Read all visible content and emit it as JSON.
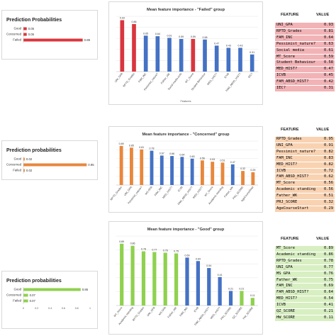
{
  "colors": {
    "failed": "#d9363e",
    "concerned": "#e8873c",
    "good": "#8fd14f",
    "bar_blue": "#4472c4",
    "row_red": "#f2b3b6",
    "row_orange": "#f9d2b1",
    "row_green": "#d8efc2"
  },
  "groups": [
    {
      "id": "failed",
      "prob_title": "Prediction Probabilities",
      "probs": [
        {
          "label": "Good",
          "value": 0.05,
          "value_text": "0.05"
        },
        {
          "label": "Concerned",
          "value": 0.05,
          "value_text": "0.05"
        },
        {
          "label": "Failed",
          "value": 0.89,
          "value_text": "0.89"
        }
      ],
      "prob_axis": [],
      "table_header": {
        "feature": "FEATURE",
        "value": "VALUE"
      },
      "table_rows": [
        {
          "feature": "UNI_GPA",
          "value": "0.93"
        },
        {
          "feature": "RPTD_Grades",
          "value": "0.81"
        },
        {
          "feature": "FAM_INC",
          "value": "0.64"
        },
        {
          "feature": "Pessimist_nature?",
          "value": "0.63"
        },
        {
          "feature": "Social media",
          "value": "0.61"
        },
        {
          "feature": "MT_Score",
          "value": "0.59"
        },
        {
          "feature": "Student Behaviour",
          "value": "0.58"
        },
        {
          "feature": "MED_HIST?",
          "value": "0.47"
        },
        {
          "feature": "ICVB",
          "value": "0.45"
        },
        {
          "feature": "FAM_ABSD_HIST?",
          "value": "0.42"
        },
        {
          "feature": "IEC?",
          "value": "0.31"
        }
      ]
    },
    {
      "id": "concerned",
      "prob_title": "Prediction probabilities",
      "probs": [
        {
          "label": "Good",
          "value": 0.02,
          "value_text": "0.02"
        },
        {
          "label": "Concerned",
          "value": 0.95,
          "value_text": "0.95"
        },
        {
          "label": "Failed",
          "value": 0.02,
          "value_text": "0.02"
        }
      ],
      "prob_axis": [],
      "table_header": {
        "feature": "FEATURE",
        "value": "VALUE"
      },
      "table_rows": [
        {
          "feature": "RPTD_Grades",
          "value": "0.95"
        },
        {
          "feature": "UNI_GPA",
          "value": "0.91"
        },
        {
          "feature": "Pessimist_nature?",
          "value": "0.82"
        },
        {
          "feature": "FAM_INC",
          "value": "0.83"
        },
        {
          "feature": "MED_HIST?",
          "value": "0.82"
        },
        {
          "feature": "ICVB",
          "value": "0.72"
        },
        {
          "feature": "FAM_ABSD_HIST?",
          "value": "0.62"
        },
        {
          "feature": "MT_Score",
          "value": "0.56"
        },
        {
          "feature": "Academic standing",
          "value": "0.56"
        },
        {
          "feature": "Father_WK",
          "value": "0.51"
        },
        {
          "feature": "PRJ_SCORE",
          "value": "0.32"
        },
        {
          "feature": "AgeCourseStart",
          "value": "0.29"
        }
      ]
    },
    {
      "id": "good",
      "prob_title": "Prediction probabilities",
      "probs": [
        {
          "label": "Good",
          "value": 0.86,
          "value_text": "0.86"
        },
        {
          "label": "Concerned",
          "value": 0.07,
          "value_text": "0.07"
        },
        {
          "label": "Failed",
          "value": 0.07,
          "value_text": "0.07"
        }
      ],
      "prob_axis": [
        "0",
        "0.2",
        "0.4",
        "0.6",
        "0.8",
        "1"
      ],
      "table_header": {
        "feature": "FEATURE",
        "value": "VALUE"
      },
      "table_rows": [
        {
          "feature": "MT_Score",
          "value": "0.89"
        },
        {
          "feature": "Academic standing",
          "value": "0.86"
        },
        {
          "feature": "RPTD_Grades",
          "value": "0.78"
        },
        {
          "feature": "UNI_GPA",
          "value": "0.77"
        },
        {
          "feature": "MS GPA",
          "value": "0.76"
        },
        {
          "feature": "Father_WK",
          "value": "0.75"
        },
        {
          "feature": "FAM_INC",
          "value": "0.69"
        },
        {
          "feature": "FAM_ABSD_HIST?",
          "value": "0.64"
        },
        {
          "feature": "MED_HIST?",
          "value": "0.54"
        },
        {
          "feature": "ICVB",
          "value": "0.41"
        },
        {
          "feature": "QZ_SCORE",
          "value": "0.21"
        },
        {
          "feature": "HW_SCORE",
          "value": "0.11"
        }
      ]
    }
  ],
  "chart_data": [
    {
      "type": "bar",
      "title": "Mean feature importance - \"Failed\" group",
      "xlabel": "Features",
      "ylim": [
        0,
        1
      ],
      "categories": [
        "UNI_GPA",
        "RPTD_Grades",
        "FAM_INC",
        "Pessimist_nature?",
        "Father_WK",
        "Social media exits",
        "MT_Score",
        "Student Behaviour",
        "MED_HIST?",
        "ICVB",
        "FAM_ABSD_HIST?",
        "IEC?"
      ],
      "values": [
        0.93,
        0.86,
        0.65,
        0.64,
        0.61,
        0.59,
        0.59,
        0.58,
        0.47,
        0.43,
        0.43,
        0.31
      ],
      "labels": [
        "0.93",
        "0.86",
        "0.65",
        "0.64",
        "0.61",
        "0.59",
        "0.59",
        "0.58",
        "0.47",
        "0.43",
        "0.43",
        "0.31"
      ],
      "colors": [
        "failed",
        "failed",
        "bar_blue",
        "bar_blue",
        "bar_blue",
        "bar_blue",
        "failed",
        "bar_blue",
        "bar_blue",
        "bar_blue",
        "bar_blue",
        "bar_blue"
      ]
    },
    {
      "type": "bar",
      "title": "Mean feature importance - \"Concerned\" group",
      "xlabel": "",
      "ylim": [
        0,
        1
      ],
      "categories": [
        "RPTD_Grades",
        "UNI_GPA",
        "Pessimist_nature?",
        "MS GPA",
        "FAM_INC",
        "MED_HIST?",
        "ICVB",
        "FAM_ABSD_HIST?",
        "MED_HIST?",
        "MT_Score",
        "Academic standing",
        "Father_WK",
        "PRJ_SCORE",
        "AgeCourseStart"
      ],
      "values": [
        0.89,
        0.85,
        0.81,
        0.78,
        0.67,
        0.66,
        0.64,
        0.6,
        0.56,
        0.53,
        0.51,
        0.47,
        0.32,
        0.29
      ],
      "labels": [
        "0.89",
        "0.85",
        "0.81",
        "0.78",
        "0.67",
        "0.66",
        "0.64",
        "0.60",
        "0.56",
        "0.53",
        "0.51",
        "0.47",
        "0.32",
        "0.29"
      ],
      "colors": [
        "concerned",
        "concerned",
        "concerned",
        "bar_blue",
        "bar_blue",
        "bar_blue",
        "bar_blue",
        "bar_blue",
        "concerned",
        "concerned",
        "concerned",
        "bar_blue",
        "concerned",
        "concerned"
      ]
    },
    {
      "type": "bar",
      "title": "Mean feature importance - \"Good\" group",
      "xlabel": "",
      "ylim": [
        0,
        1
      ],
      "categories": [
        "MT_Score",
        "Academic standing",
        "RPTD_Grades",
        "UNI_GPA",
        "MS GPA",
        "Father_WK",
        "FAM_INC",
        "ICVB",
        "FAM_ABSD_HIST?",
        "MED_HIST?",
        "PRJ_SCORE",
        "QZ_SCORE",
        "HW_SCORE"
      ],
      "values": [
        0.89,
        0.86,
        0.78,
        0.77,
        0.76,
        0.75,
        0.69,
        0.64,
        0.54,
        0.41,
        0.21,
        0.21,
        0.11
      ],
      "labels": [
        "0.89",
        "0.86",
        "0.78",
        "0.77",
        "0.76",
        "0.75",
        "0.69",
        "0.64",
        "0.54",
        "0.41",
        "0.21",
        "0.21",
        "0.11"
      ],
      "colors": [
        "good",
        "good",
        "good",
        "good",
        "good",
        "good",
        "bar_blue",
        "bar_blue",
        "bar_blue",
        "bar_blue",
        "bar_blue",
        "good",
        "good"
      ]
    }
  ]
}
